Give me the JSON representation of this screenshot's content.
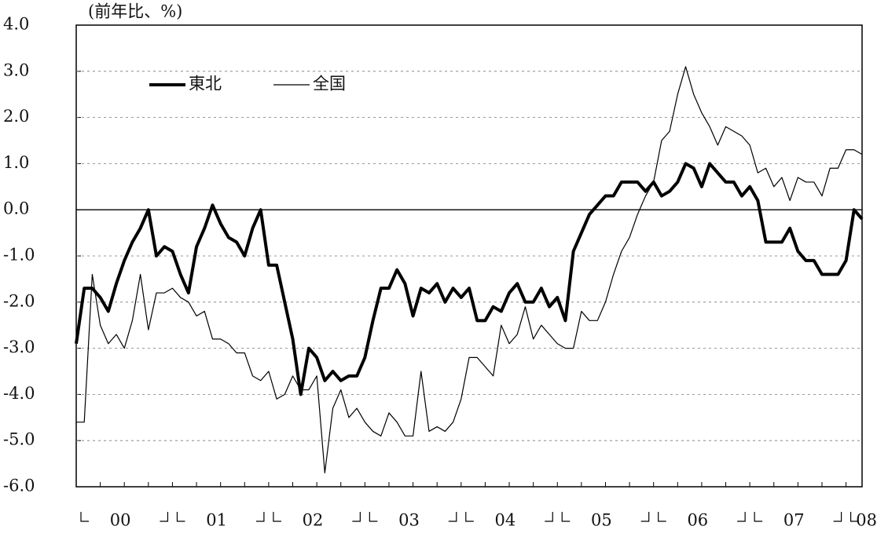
{
  "chart_data": {
    "type": "line",
    "y_axis_label": "(前年比、%)",
    "x_labels": [
      "00",
      "01",
      "02",
      "03",
      "04",
      "05",
      "06",
      "07",
      "08"
    ],
    "ylim": [
      -6,
      4
    ],
    "yticks": [
      {
        "value": 4,
        "label": "4.0"
      },
      {
        "value": 3,
        "label": "3.0"
      },
      {
        "value": 2,
        "label": "2.0"
      },
      {
        "value": 1,
        "label": "1.0"
      },
      {
        "value": 0,
        "label": "0.0"
      },
      {
        "value": -1,
        "label": "-1.0"
      },
      {
        "value": -2,
        "label": "-2.0"
      },
      {
        "value": -3,
        "label": "-3.0"
      },
      {
        "value": -4,
        "label": "-4.0"
      },
      {
        "value": -5,
        "label": "-5.0"
      },
      {
        "value": -6,
        "label": "-6.0"
      }
    ],
    "grid": true,
    "series": [
      {
        "name": "東北",
        "color": "#000000",
        "width": 4,
        "values": [
          -2.9,
          -1.7,
          -1.7,
          -1.9,
          -2.2,
          -1.6,
          -1.1,
          -0.7,
          -0.4,
          0.0,
          -1.0,
          -0.8,
          -0.9,
          -1.4,
          -1.8,
          -0.8,
          -0.4,
          0.1,
          -0.3,
          -0.6,
          -0.7,
          -1.0,
          -0.4,
          0.0,
          -1.2,
          -1.2,
          -2.0,
          -2.8,
          -4.0,
          -3.0,
          -3.2,
          -3.7,
          -3.5,
          -3.7,
          -3.6,
          -3.6,
          -3.2,
          -2.4,
          -1.7,
          -1.7,
          -1.3,
          -1.6,
          -2.3,
          -1.7,
          -1.8,
          -1.6,
          -2.0,
          -1.7,
          -1.9,
          -1.7,
          -2.4,
          -2.4,
          -2.1,
          -2.2,
          -1.8,
          -1.6,
          -2.0,
          -2.0,
          -1.7,
          -2.1,
          -1.9,
          -2.4,
          -0.9,
          -0.5,
          -0.1,
          0.1,
          0.3,
          0.3,
          0.6,
          0.6,
          0.6,
          0.4,
          0.6,
          0.3,
          0.4,
          0.6,
          1.0,
          0.9,
          0.5,
          1.0,
          0.8,
          0.6,
          0.6,
          0.3,
          0.5,
          0.2,
          -0.7,
          -0.7,
          -0.7,
          -0.4,
          -0.9,
          -1.1,
          -1.1,
          -1.4,
          -1.4,
          -1.4,
          -1.1,
          0.0,
          -0.2
        ]
      },
      {
        "name": "全国",
        "color": "#000000",
        "width": 1.2,
        "values": [
          -4.6,
          -4.6,
          -1.4,
          -2.5,
          -2.9,
          -2.7,
          -3.0,
          -2.4,
          -1.4,
          -2.6,
          -1.8,
          -1.8,
          -1.7,
          -1.9,
          -2.0,
          -2.3,
          -2.2,
          -2.8,
          -2.8,
          -2.9,
          -3.1,
          -3.1,
          -3.6,
          -3.7,
          -3.5,
          -4.1,
          -4.0,
          -3.6,
          -3.9,
          -3.9,
          -3.6,
          -5.7,
          -4.3,
          -3.9,
          -4.5,
          -4.3,
          -4.6,
          -4.8,
          -4.9,
          -4.4,
          -4.6,
          -4.9,
          -4.9,
          -3.5,
          -4.8,
          -4.7,
          -4.8,
          -4.6,
          -4.1,
          -3.2,
          -3.2,
          -3.4,
          -3.6,
          -2.5,
          -2.9,
          -2.7,
          -2.1,
          -2.8,
          -2.5,
          -2.7,
          -2.9,
          -3.0,
          -3.0,
          -2.2,
          -2.4,
          -2.4,
          -2.0,
          -1.4,
          -0.9,
          -0.6,
          -0.1,
          0.3,
          0.6,
          1.5,
          1.7,
          2.5,
          3.1,
          2.5,
          2.1,
          1.8,
          1.4,
          1.8,
          1.7,
          1.6,
          1.4,
          0.8,
          0.9,
          0.5,
          0.7,
          0.2,
          0.7,
          0.6,
          0.6,
          0.3,
          0.9,
          0.9,
          1.3,
          1.3,
          1.2
        ]
      }
    ]
  }
}
